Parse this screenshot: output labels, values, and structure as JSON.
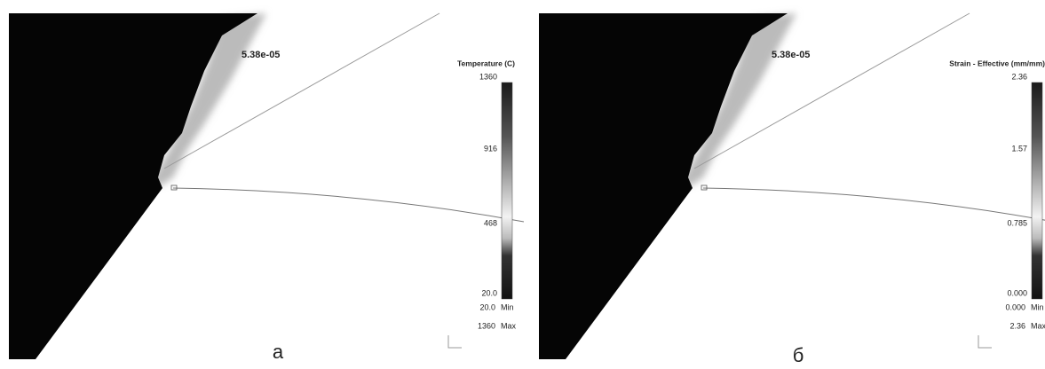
{
  "panels": [
    {
      "label": "а",
      "time": "5.38e-05",
      "legend_title": "Temperature (C)",
      "ticks": [
        "1360",
        "916",
        "468",
        "20.0"
      ],
      "min": "20.0",
      "min_label": "Min",
      "max": "1360",
      "max_label": "Max"
    },
    {
      "label": "б",
      "time": "5.38e-05",
      "legend_title": "Strain - Effective (mm/mm)",
      "ticks": [
        "2.36",
        "1.57",
        "0.785",
        "0.000"
      ],
      "min": "0.000",
      "min_label": "Min",
      "max": "2.36",
      "max_label": "Max"
    }
  ]
}
